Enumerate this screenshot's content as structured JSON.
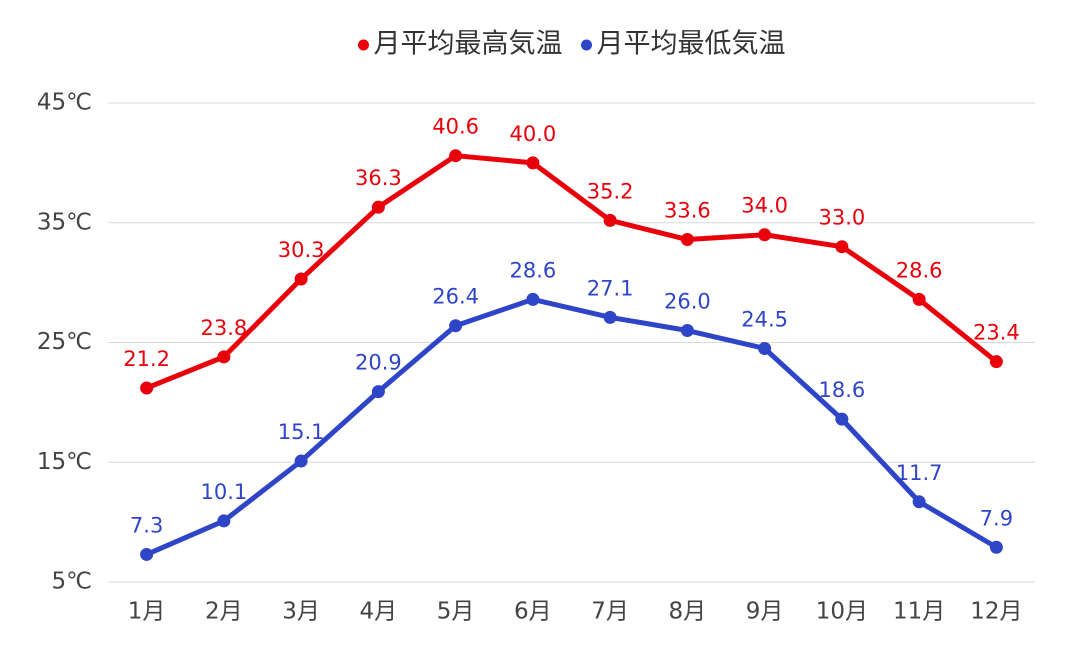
{
  "chart_data": {
    "type": "line",
    "categories": [
      "1月",
      "2月",
      "3月",
      "4月",
      "5月",
      "6月",
      "7月",
      "8月",
      "9月",
      "10月",
      "11月",
      "12月"
    ],
    "series": [
      {
        "name": "月平均最高気温",
        "color": "#e8000b",
        "values": [
          21.2,
          23.8,
          30.3,
          36.3,
          40.6,
          40.0,
          35.2,
          33.6,
          34.0,
          33.0,
          28.6,
          23.4
        ],
        "value_labels": [
          "21.2",
          "23.8",
          "30.3",
          "36.3",
          "40.6",
          "40.0",
          "35.2",
          "33.6",
          "34.0",
          "33.0",
          "28.6",
          "23.4"
        ]
      },
      {
        "name": "月平均最低気温",
        "color": "#2f45c8",
        "values": [
          7.3,
          10.1,
          15.1,
          20.9,
          26.4,
          28.6,
          27.1,
          26.0,
          24.5,
          18.6,
          11.7,
          7.9
        ],
        "value_labels": [
          "7.3",
          "10.1",
          "15.1",
          "20.9",
          "26.4",
          "28.6",
          "27.1",
          "26.0",
          "24.5",
          "18.6",
          "11.7",
          "7.9"
        ]
      }
    ],
    "ylim": [
      5,
      45
    ],
    "yticks": [
      {
        "value": 5,
        "label": "5℃"
      },
      {
        "value": 15,
        "label": "15℃"
      },
      {
        "value": 25,
        "label": "25℃"
      },
      {
        "value": 35,
        "label": "35℃"
      },
      {
        "value": 45,
        "label": "45℃"
      }
    ],
    "grid": true,
    "legend": "top"
  }
}
